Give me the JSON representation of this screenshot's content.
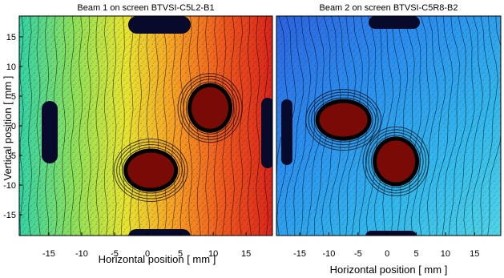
{
  "chart_data": [
    {
      "type": "heatmap",
      "title": "Beam 1 on screen BTVSI-C5L2-B1",
      "xlabel": "Horizontal position [ mm ]",
      "ylabel": "Vertical position [ mm ]",
      "xlim": [
        -19.5,
        19
      ],
      "ylim": [
        -18.5,
        18.5
      ],
      "xticks": [
        -15,
        -10,
        -5,
        0,
        5,
        10,
        15
      ],
      "yticks": [
        15,
        10,
        5,
        0,
        -5,
        -10,
        -15
      ],
      "colormap": "jet",
      "gradient_direction": "left-to-right",
      "spots": [
        {
          "x": 9.5,
          "y": 3.0
        },
        {
          "x": 0.5,
          "y": -7.5
        }
      ],
      "grid": false
    },
    {
      "type": "heatmap",
      "title": "Beam 2 on screen BTVSI-C5R8-B2",
      "xlabel": "Horizontal position [ mm ]",
      "ylabel": "",
      "xlim": [
        -19,
        19.5
      ],
      "ylim": [
        -18.5,
        18.5
      ],
      "xticks": [
        -15,
        -10,
        -5,
        0,
        5,
        10,
        15
      ],
      "yticks": [],
      "colormap": "jet",
      "gradient_direction": "flat-blue",
      "spots": [
        {
          "x": -7.5,
          "y": 1.0
        },
        {
          "x": 1.5,
          "y": -6.0
        }
      ],
      "grid": false
    }
  ]
}
